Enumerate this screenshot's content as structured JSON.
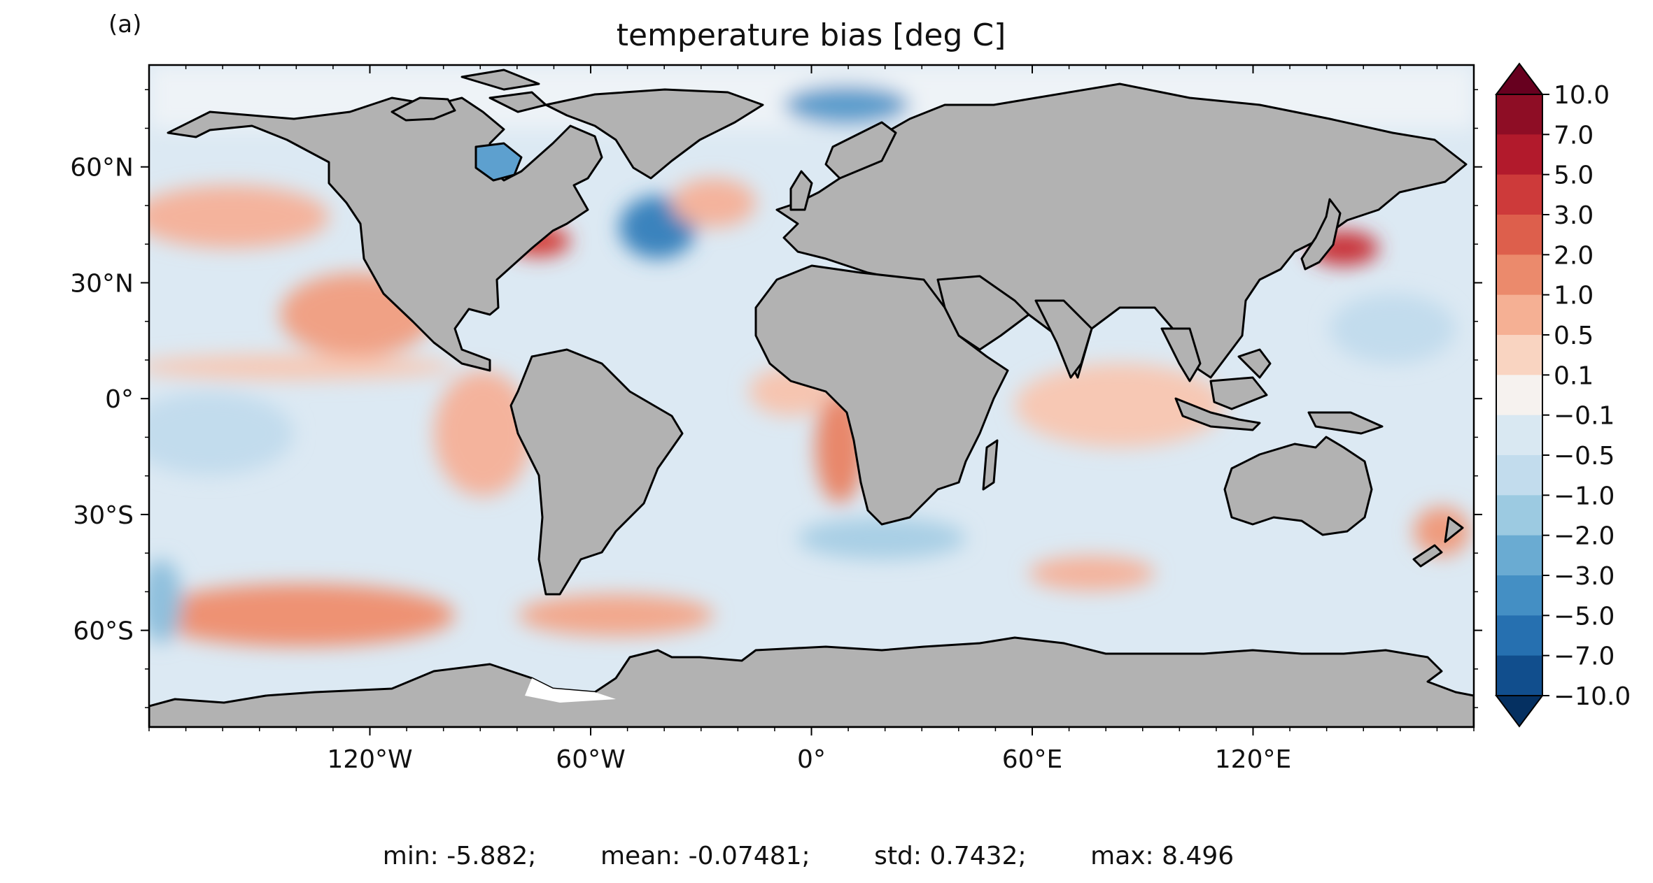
{
  "panel_label": "(a)",
  "title": "temperature bias [deg C]",
  "stats_text": "min: -5.882;        mean: -0.07481;        std: 0.7432;        max: 8.496",
  "colors": {
    "land": "#b2b2b2",
    "ocean_base": "#dce9f3",
    "coast": "#000000"
  },
  "chart_data": {
    "type": "heatmap",
    "lat_ticks": [
      "60°N",
      "30°N",
      "0°",
      "30°S",
      "60°S"
    ],
    "lon_ticks": [
      "120°W",
      "60°W",
      "0°",
      "60°E",
      "120°E"
    ],
    "lat_values": [
      60,
      30,
      0,
      -30,
      -60
    ],
    "lon_values": [
      -120,
      -60,
      0,
      60,
      120
    ],
    "colorbar": {
      "labels": [
        "10.0",
        "7.0",
        "5.0",
        "3.0",
        "2.0",
        "1.0",
        "0.5",
        "0.1",
        "−0.1",
        "−0.5",
        "−1.0",
        "−2.0",
        "−3.0",
        "−5.0",
        "−7.0",
        "−10.0"
      ],
      "colors": [
        "#8e0d25",
        "#b21a2c",
        "#cd3a3a",
        "#dd5f4c",
        "#eb8a6c",
        "#f5b094",
        "#f9d4c1",
        "#f6f2ef",
        "#d9e8f2",
        "#c2dced",
        "#9ccae1",
        "#6aabd2",
        "#448fc4",
        "#2670b0",
        "#114e8d"
      ],
      "extend_max_color": "#67001f",
      "extend_min_color": "#053061"
    }
  }
}
